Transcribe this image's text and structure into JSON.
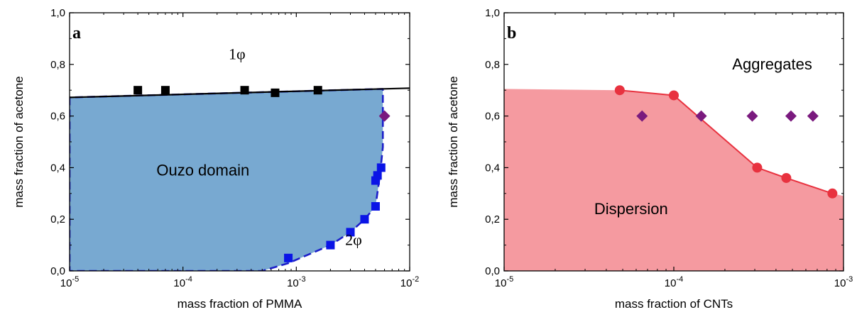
{
  "chart_data": [
    {
      "panel": "a",
      "type": "scatter",
      "title": "",
      "xlabel": "mass fraction of PMMA",
      "ylabel": "mass fraction of acetone",
      "xscale": "log",
      "xlim": [
        1e-05,
        0.01
      ],
      "ylim": [
        0,
        1.0
      ],
      "x_ticks": [
        1e-05,
        0.0001,
        0.001,
        0.01
      ],
      "x_tick_labels": [
        {
          "base": "10",
          "exp": "-5"
        },
        {
          "base": "10",
          "exp": "-4"
        },
        {
          "base": "10",
          "exp": "-3"
        },
        {
          "base": "10",
          "exp": "-2"
        }
      ],
      "y_ticks": [
        0,
        0.2,
        0.4,
        0.6,
        0.8,
        1.0
      ],
      "y_tick_labels": [
        "0,0",
        "0,2",
        "0,4",
        "0,6",
        "0,8",
        "1,0"
      ],
      "grid": false,
      "series": [
        {
          "kind": "boundary-line",
          "color": "#000000",
          "x": [
            1e-05,
            0.01
          ],
          "y": [
            0.672,
            0.708
          ]
        },
        {
          "kind": "markers",
          "marker": "square",
          "color": "#000000",
          "x": [
            4e-05,
            7e-05,
            0.00035,
            0.00065,
            0.00155
          ],
          "y": [
            0.7,
            0.7,
            0.7,
            0.69,
            0.7
          ]
        },
        {
          "kind": "markers",
          "marker": "square",
          "color": "#0a14e6",
          "x": [
            0.00085,
            0.002,
            0.003,
            0.004,
            0.005,
            0.005,
            0.0052,
            0.0056
          ],
          "y": [
            0.05,
            0.1,
            0.15,
            0.2,
            0.25,
            0.35,
            0.37,
            0.4
          ]
        },
        {
          "kind": "markers",
          "marker": "diamond",
          "color": "#7a1a7e",
          "x": [
            0.006
          ],
          "y": [
            0.6
          ]
        },
        {
          "kind": "shaded-region",
          "fill": "#78a9d1",
          "edge": "#1c1fc9",
          "dashed": true,
          "x": [
            1e-05,
            1e-05,
            0.0005,
            0.00085,
            0.002,
            0.003,
            0.004,
            0.005,
            0.0055,
            0.0058,
            0.0058,
            1e-05
          ],
          "y": [
            0.672,
            0.0,
            0.0,
            0.03,
            0.1,
            0.15,
            0.2,
            0.25,
            0.38,
            0.48,
            0.705,
            0.672
          ]
        }
      ],
      "annotations": [
        {
          "text": "1",
          "suffix": "φ",
          "x": 0.0003,
          "y": 0.82
        },
        {
          "text": "Ouzo domain",
          "x": 0.00015,
          "y": 0.37
        },
        {
          "text": "2",
          "suffix": "φ",
          "x": 0.0032,
          "y": 0.1
        }
      ],
      "panel_label": "a"
    },
    {
      "panel": "b",
      "type": "scatter",
      "title": "",
      "xlabel": "mass fraction of CNTs",
      "ylabel": "mass fraction of acetone",
      "xscale": "log",
      "xlim": [
        1e-05,
        0.001
      ],
      "ylim": [
        0,
        1.0
      ],
      "x_ticks": [
        1e-05,
        0.0001,
        0.001
      ],
      "x_tick_labels": [
        {
          "base": "10",
          "exp": "-5"
        },
        {
          "base": "10",
          "exp": "-4"
        },
        {
          "base": "10",
          "exp": "-3"
        }
      ],
      "y_ticks": [
        0,
        0.2,
        0.4,
        0.6,
        0.8,
        1.0
      ],
      "y_tick_labels": [
        "0,0",
        "0,2",
        "0,4",
        "0,6",
        "0,8",
        "1,0"
      ],
      "grid": false,
      "series": [
        {
          "kind": "line-markers",
          "marker": "circle",
          "color": "#e8323f",
          "x": [
            4.8e-05,
            0.0001,
            0.00031,
            0.00046,
            0.00086
          ],
          "y": [
            0.7,
            0.68,
            0.4,
            0.36,
            0.3
          ]
        },
        {
          "kind": "markers",
          "marker": "diamond",
          "color": "#7a1a7e",
          "x": [
            6.5e-05,
            0.000145,
            0.00029,
            0.00049,
            0.00066
          ],
          "y": [
            0.6,
            0.6,
            0.6,
            0.6,
            0.6
          ]
        },
        {
          "kind": "shaded-region",
          "fill": "#f59aa0",
          "edge": "#e8323f",
          "dashed": false,
          "x": [
            1e-05,
            1e-05,
            4.8e-05,
            0.0001,
            0.00031,
            0.00046,
            0.00086,
            0.001,
            0.001,
            1e-05
          ],
          "y": [
            0.0,
            0.705,
            0.7,
            0.68,
            0.4,
            0.36,
            0.3,
            0.29,
            0.0,
            0.0
          ]
        }
      ],
      "annotations": [
        {
          "text": "Aggregates",
          "x": 0.00038,
          "y": 0.78
        },
        {
          "text": "Dispersion",
          "x": 5.6e-05,
          "y": 0.22
        }
      ],
      "panel_label": "b"
    }
  ]
}
